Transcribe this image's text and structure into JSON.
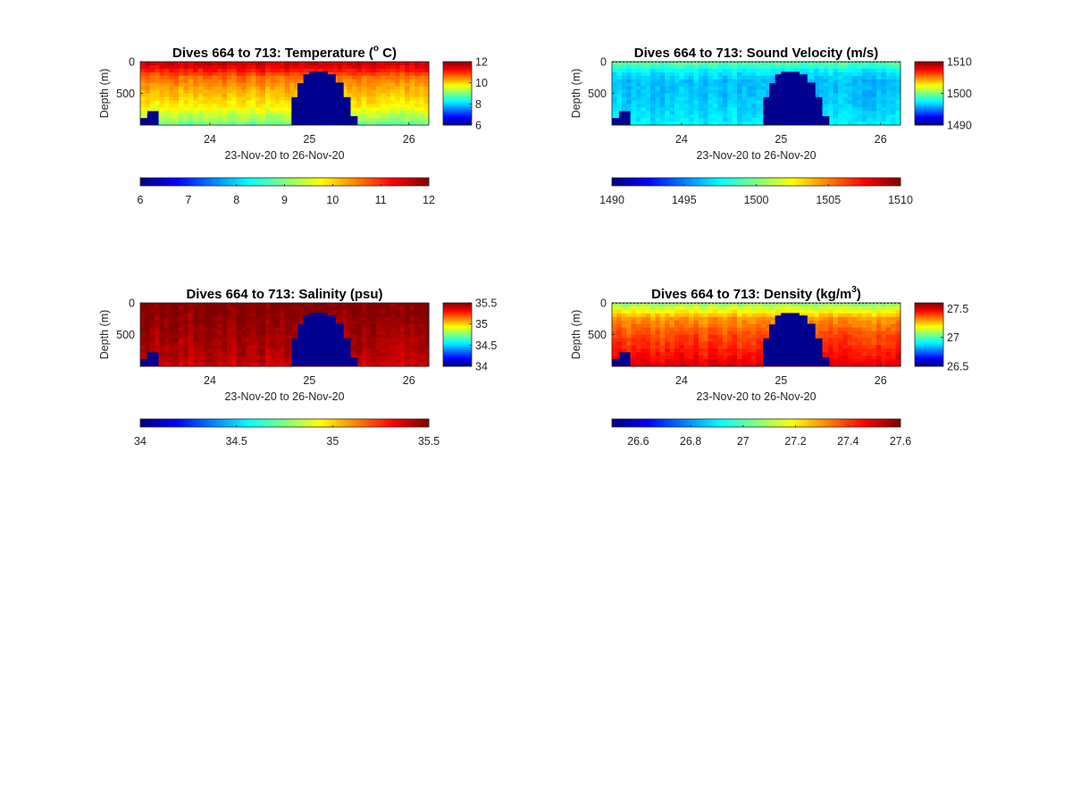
{
  "chart_data": [
    {
      "type": "heatmap",
      "title": "Dives 664 to 713: Temperature (",
      "title_sup": "o",
      "title_suffix": " C)",
      "ylabel": "Depth (m)",
      "xlabel": "23-Nov-20 to 26-Nov-20",
      "x_ticks": [
        "24",
        "25",
        "26"
      ],
      "x_tick_values": [
        24,
        25,
        26
      ],
      "xlim": [
        23.3,
        26.2
      ],
      "y_ticks": [
        "0",
        "500"
      ],
      "y_tick_values": [
        0,
        500
      ],
      "ylim": [
        0,
        1000
      ],
      "surface_value": 11.6,
      "deep_value": 9.4,
      "profile": [
        [
          0,
          11.6
        ],
        [
          100,
          11.3
        ],
        [
          250,
          10.6
        ],
        [
          450,
          10.2
        ],
        [
          700,
          9.8
        ],
        [
          900,
          9.2
        ],
        [
          1000,
          8.8
        ]
      ],
      "colorbar": {
        "min": 6,
        "max": 12,
        "ticks": [
          "12",
          "10",
          "8",
          "6"
        ],
        "tick_values": [
          12,
          10,
          8,
          6
        ]
      },
      "h_colorbar": {
        "min": 6,
        "max": 12,
        "ticks": [
          "6",
          "7",
          "8",
          "9",
          "10",
          "11",
          "12"
        ],
        "tick_values": [
          6,
          7,
          8,
          9,
          10,
          11,
          12
        ]
      }
    },
    {
      "type": "heatmap",
      "title": "Dives 664 to 713: Sound Velocity (m/s)",
      "title_sup": "",
      "title_suffix": "",
      "ylabel": "Depth (m)",
      "xlabel": "23-Nov-20 to 26-Nov-20",
      "x_ticks": [
        "24",
        "25",
        "26"
      ],
      "x_tick_values": [
        24,
        25,
        26
      ],
      "xlim": [
        23.3,
        26.2
      ],
      "y_ticks": [
        "0",
        "500"
      ],
      "y_tick_values": [
        0,
        500
      ],
      "ylim": [
        0,
        1000
      ],
      "profile": [
        [
          0,
          1499.5
        ],
        [
          150,
          1497.2
        ],
        [
          300,
          1496.2
        ],
        [
          550,
          1496.3
        ],
        [
          800,
          1496.8
        ],
        [
          1000,
          1497.3
        ]
      ],
      "colorbar": {
        "min": 1490,
        "max": 1510,
        "ticks": [
          "1510",
          "1500",
          "1490"
        ],
        "tick_values": [
          1510,
          1500,
          1490
        ]
      },
      "h_colorbar": {
        "min": 1490,
        "max": 1510,
        "ticks": [
          "1490",
          "1495",
          "1500",
          "1505",
          "1510"
        ],
        "tick_values": [
          1490,
          1495,
          1500,
          1505,
          1510
        ]
      }
    },
    {
      "type": "heatmap",
      "title": "Dives 664 to 713: Salinity (psu)",
      "title_sup": "",
      "title_suffix": "",
      "ylabel": "Depth (m)",
      "xlabel": "23-Nov-20 to 26-Nov-20",
      "x_ticks": [
        "24",
        "25",
        "26"
      ],
      "x_tick_values": [
        24,
        25,
        26
      ],
      "xlim": [
        23.3,
        26.2
      ],
      "y_ticks": [
        "0",
        "500"
      ],
      "y_tick_values": [
        0,
        500
      ],
      "ylim": [
        0,
        1000
      ],
      "profile": [
        [
          0,
          35.5
        ],
        [
          200,
          35.48
        ],
        [
          500,
          35.45
        ],
        [
          800,
          35.42
        ],
        [
          1000,
          35.38
        ]
      ],
      "colorbar": {
        "min": 34,
        "max": 35.5,
        "ticks": [
          "35.5",
          "35",
          "34.5",
          "34"
        ],
        "tick_values": [
          35.5,
          35,
          34.5,
          34
        ]
      },
      "h_colorbar": {
        "min": 34,
        "max": 35.5,
        "ticks": [
          "34",
          "34.5",
          "35",
          "35.5"
        ],
        "tick_values": [
          34,
          34.5,
          35,
          35.5
        ]
      }
    },
    {
      "type": "heatmap",
      "title": "Dives 664 to 713: Density (kg/m",
      "title_sup": "3",
      "title_suffix": ")",
      "ylabel": "Depth (m)",
      "xlabel": "23-Nov-20 to 26-Nov-20",
      "x_ticks": [
        "24",
        "25",
        "26"
      ],
      "x_tick_values": [
        24,
        25,
        26
      ],
      "xlim": [
        23.3,
        26.2
      ],
      "y_ticks": [
        "0",
        "500"
      ],
      "y_tick_values": [
        0,
        500
      ],
      "ylim": [
        0,
        1000
      ],
      "profile": [
        [
          0,
          27.05
        ],
        [
          100,
          27.15
        ],
        [
          250,
          27.3
        ],
        [
          500,
          27.38
        ],
        [
          800,
          27.44
        ],
        [
          1000,
          27.5
        ]
      ],
      "colorbar": {
        "min": 26.5,
        "max": 27.6,
        "ticks": [
          "27.5",
          "27",
          "26.5"
        ],
        "tick_values": [
          27.5,
          27,
          26.5
        ]
      },
      "h_colorbar": {
        "min": 26.5,
        "max": 27.6,
        "ticks": [
          "26.6",
          "26.8",
          "27",
          "27.2",
          "27.4",
          "27.6"
        ],
        "tick_values": [
          26.6,
          26.8,
          27,
          27.2,
          27.4,
          27.6
        ]
      }
    }
  ],
  "no_data_mask": {
    "columns": [
      [
        23.3,
        23.37,
        890
      ],
      [
        23.37,
        23.48,
        780
      ],
      [
        24.82,
        24.88,
        560
      ],
      [
        24.88,
        24.94,
        340
      ],
      [
        24.94,
        25.0,
        200
      ],
      [
        25.0,
        25.18,
        160
      ],
      [
        25.18,
        25.26,
        200
      ],
      [
        25.26,
        25.34,
        330
      ],
      [
        25.34,
        25.41,
        560
      ],
      [
        25.41,
        25.48,
        860
      ]
    ]
  },
  "colors": {
    "no_data": "#00008F",
    "text": "#262626",
    "axis": "#262626"
  }
}
